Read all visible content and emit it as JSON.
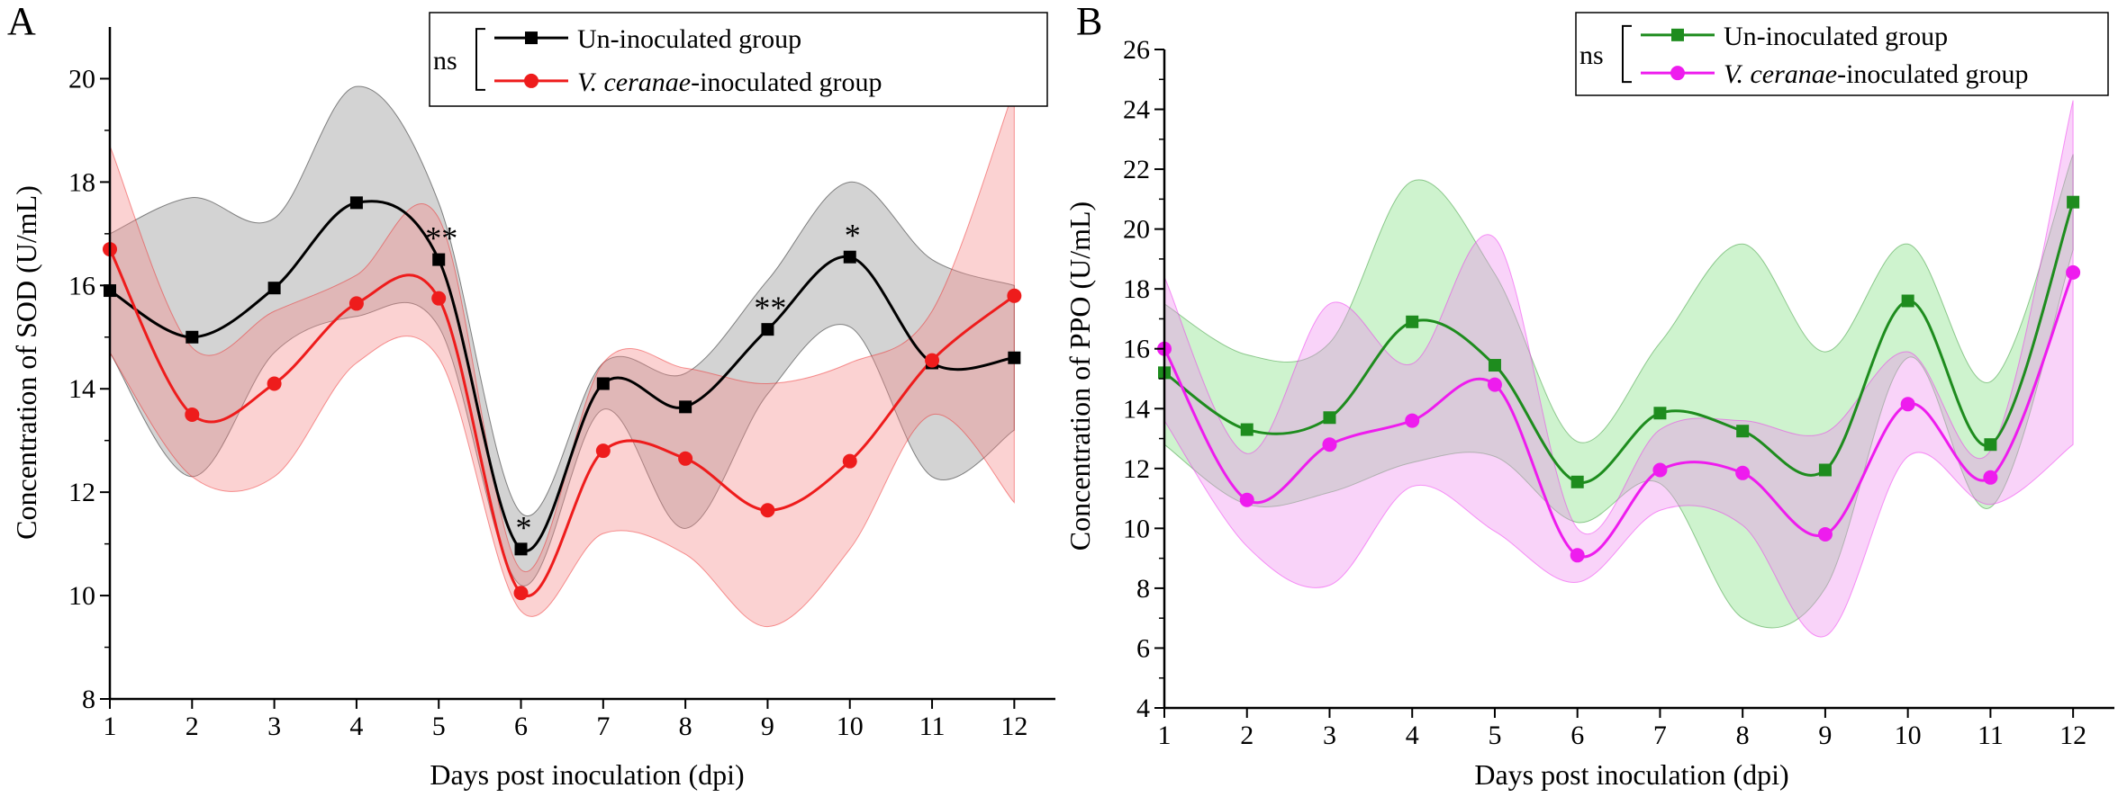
{
  "chart_data": [
    {
      "type": "line",
      "panel_label": "A",
      "xlabel": "Days post inoculation (dpi)",
      "ylabel": "Concentration of SOD (U/mL)",
      "xlim": [
        1,
        12.5
      ],
      "ylim": [
        8,
        21
      ],
      "x": [
        1,
        2,
        3,
        4,
        5,
        6,
        7,
        8,
        9,
        10,
        11,
        12
      ],
      "x_ticks": [
        "1",
        "2",
        "3",
        "4",
        "5",
        "6",
        "7",
        "8",
        "9",
        "10",
        "11",
        "12"
      ],
      "y_ticks": [
        "8",
        "10",
        "12",
        "14",
        "16",
        "18",
        "20"
      ],
      "y_tick_values": [
        8,
        10,
        12,
        14,
        16,
        18,
        20
      ],
      "legend": {
        "ns": "ns",
        "entries": [
          {
            "label_plain": "Un-inoculated group",
            "label_italic": "",
            "color": "#000000",
            "marker": "square"
          },
          {
            "label_plain": "-inoculated group",
            "label_italic": "V. ceranae",
            "color": "#ee1c1c",
            "marker": "circle"
          }
        ]
      },
      "series": [
        {
          "name": "Un-inoculated group",
          "color": "#000000",
          "band_fill": "#8c8c8c",
          "marker": "square",
          "values": [
            15.9,
            15.0,
            15.95,
            17.6,
            16.5,
            10.9,
            14.1,
            13.65,
            15.15,
            16.55,
            14.5,
            14.6
          ],
          "upper": [
            17.0,
            17.7,
            17.3,
            19.85,
            17.6,
            11.6,
            14.5,
            14.3,
            16.1,
            18.0,
            16.5,
            16.0
          ],
          "lower": [
            14.7,
            12.3,
            14.7,
            15.4,
            15.2,
            10.2,
            13.6,
            11.3,
            13.9,
            15.2,
            12.3,
            13.2
          ]
        },
        {
          "name": "V. ceranae-inoculated group",
          "color": "#ee1c1c",
          "band_fill": "#f58a8a",
          "marker": "circle",
          "values": [
            16.7,
            13.5,
            14.1,
            15.65,
            15.75,
            10.05,
            12.8,
            12.65,
            11.65,
            12.6,
            14.55,
            15.8
          ],
          "upper": [
            18.7,
            14.8,
            15.5,
            16.2,
            17.3,
            10.5,
            14.5,
            14.4,
            14.1,
            14.5,
            15.5,
            19.8
          ],
          "lower": [
            14.7,
            12.3,
            12.3,
            14.5,
            14.6,
            9.7,
            11.2,
            10.8,
            9.4,
            10.9,
            13.5,
            11.8
          ]
        }
      ],
      "annotations": [
        {
          "x": 5,
          "y": 16.5,
          "text": "**"
        },
        {
          "x": 6,
          "y": 10.9,
          "text": "*"
        },
        {
          "x": 9,
          "y": 15.15,
          "text": "**"
        },
        {
          "x": 10,
          "y": 16.55,
          "text": "*"
        }
      ]
    },
    {
      "type": "line",
      "panel_label": "B",
      "xlabel": "Days post inoculation (dpi)",
      "ylabel": "Concentration of PPO (U/mL)",
      "xlim": [
        1,
        12.5
      ],
      "ylim": [
        4,
        26
      ],
      "x": [
        1,
        2,
        3,
        4,
        5,
        6,
        7,
        8,
        9,
        10,
        11,
        12
      ],
      "x_ticks": [
        "1",
        "2",
        "3",
        "4",
        "5",
        "6",
        "7",
        "8",
        "9",
        "10",
        "11",
        "12"
      ],
      "y_ticks": [
        "4",
        "6",
        "8",
        "10",
        "12",
        "14",
        "16",
        "18",
        "20",
        "22",
        "24",
        "26"
      ],
      "y_tick_values": [
        4,
        6,
        8,
        10,
        12,
        14,
        16,
        18,
        20,
        22,
        24,
        26
      ],
      "legend": {
        "ns": "ns",
        "entries": [
          {
            "label_plain": "Un-inoculated group",
            "label_italic": "",
            "color": "#1e8c1e",
            "marker": "square"
          },
          {
            "label_plain": "-inoculated group",
            "label_italic": "V. ceranae",
            "color": "#ee1cee",
            "marker": "circle"
          }
        ]
      },
      "series": [
        {
          "name": "Un-inoculated group",
          "color": "#1e8c1e",
          "band_fill": "#7ee07e",
          "marker": "square",
          "values": [
            15.2,
            13.3,
            13.7,
            16.9,
            15.45,
            11.55,
            13.85,
            13.25,
            11.95,
            17.6,
            12.8,
            20.9
          ],
          "upper": [
            17.5,
            15.8,
            16.2,
            21.6,
            18.5,
            12.9,
            16.2,
            19.5,
            15.9,
            19.5,
            14.9,
            22.5
          ],
          "lower": [
            12.8,
            10.8,
            11.2,
            12.2,
            12.4,
            10.2,
            11.5,
            7.0,
            8.0,
            15.7,
            10.7,
            19.3
          ]
        },
        {
          "name": "V. ceranae-inoculated group",
          "color": "#ee1cee",
          "band_fill": "#f08cf0",
          "marker": "circle",
          "values": [
            16.0,
            10.95,
            12.8,
            13.6,
            14.8,
            9.1,
            11.95,
            11.85,
            9.8,
            14.15,
            11.7,
            18.55
          ],
          "upper": [
            18.4,
            12.5,
            17.5,
            15.5,
            19.7,
            10.0,
            13.3,
            13.6,
            13.2,
            15.9,
            12.6,
            24.3
          ],
          "lower": [
            13.6,
            9.4,
            8.1,
            11.4,
            9.9,
            8.2,
            10.6,
            10.1,
            6.4,
            12.4,
            10.8,
            12.8
          ]
        }
      ],
      "annotations": []
    }
  ]
}
